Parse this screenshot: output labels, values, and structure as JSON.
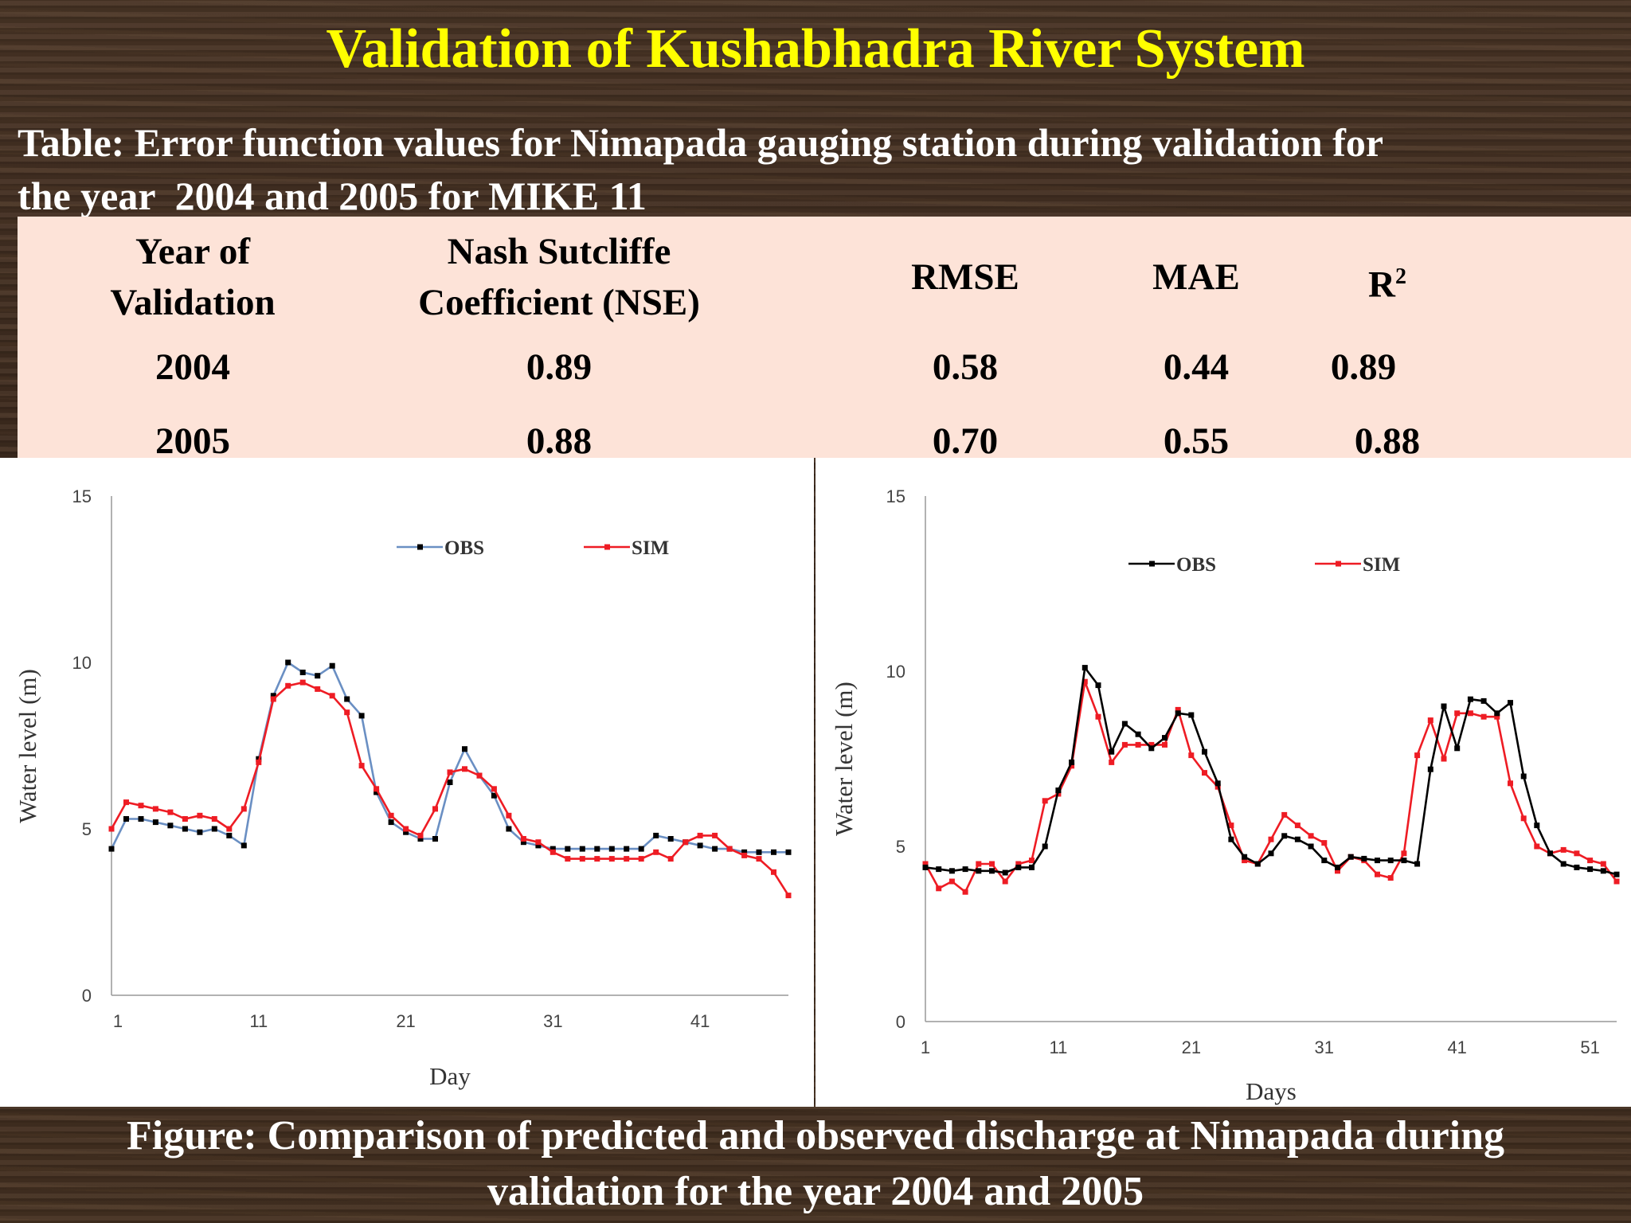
{
  "title": "Validation of Kushabhadra River System",
  "table": {
    "caption_line1": "Table: Error function values for Nimapada gauging station during validation for",
    "caption_line2": "the year  2004 and 2005 for MIKE 11",
    "headers": {
      "year_line1": "Year of",
      "year_line2": "Validation",
      "nse_line1": "Nash Sutcliffe",
      "nse_line2": "Coefficient (NSE)",
      "rmse": "RMSE",
      "mae": "MAE",
      "r2_base": "R",
      "r2_sup": "2"
    },
    "rows": [
      {
        "year": "2004",
        "nse": "0.89",
        "rmse": "0.58",
        "mae": "0.44",
        "r2": "0.89"
      },
      {
        "year": "2005",
        "nse": "0.88",
        "rmse": "0.70",
        "mae": "0.55",
        "r2": "0.88"
      }
    ]
  },
  "chart_data": [
    {
      "type": "line",
      "xlabel": "Day",
      "ylabel": "Water level (m)",
      "ylim": [
        0,
        15
      ],
      "xlim": [
        1,
        47
      ],
      "y_ticks": [
        "0",
        "5",
        "10",
        "15"
      ],
      "x_ticks": [
        1,
        11,
        21,
        31,
        41
      ],
      "grid": false,
      "legend_position": "top-right",
      "colors": {
        "OBS": "#6a8fc3",
        "SIM": "#ee1c24"
      },
      "series": [
        {
          "name": "OBS",
          "x": [
            1,
            2,
            3,
            4,
            5,
            6,
            7,
            8,
            9,
            10,
            11,
            12,
            13,
            14,
            15,
            16,
            17,
            18,
            19,
            20,
            21,
            22,
            23,
            24,
            25,
            26,
            27,
            28,
            29,
            30,
            31,
            32,
            33,
            34,
            35,
            36,
            37,
            38,
            39,
            40,
            41,
            42,
            43,
            44,
            45,
            46,
            47
          ],
          "values": [
            4.4,
            5.3,
            5.3,
            5.2,
            5.1,
            5.0,
            4.9,
            5.0,
            4.8,
            4.5,
            7.1,
            9.0,
            10.0,
            9.7,
            9.6,
            9.9,
            8.9,
            8.4,
            6.1,
            5.2,
            4.9,
            4.7,
            4.7,
            6.4,
            7.4,
            6.6,
            6.0,
            5.0,
            4.6,
            4.5,
            4.4,
            4.4,
            4.4,
            4.4,
            4.4,
            4.4,
            4.4,
            4.8,
            4.7,
            4.6,
            4.5,
            4.4,
            4.4,
            4.3,
            4.3,
            4.3,
            4.3
          ]
        },
        {
          "name": "SIM",
          "x": [
            1,
            2,
            3,
            4,
            5,
            6,
            7,
            8,
            9,
            10,
            11,
            12,
            13,
            14,
            15,
            16,
            17,
            18,
            19,
            20,
            21,
            22,
            23,
            24,
            25,
            26,
            27,
            28,
            29,
            30,
            31,
            32,
            33,
            34,
            35,
            36,
            37,
            38,
            39,
            40,
            41,
            42,
            43,
            44,
            45,
            46,
            47
          ],
          "values": [
            5.0,
            5.8,
            5.7,
            5.6,
            5.5,
            5.3,
            5.4,
            5.3,
            5.0,
            5.6,
            7.0,
            8.9,
            9.3,
            9.4,
            9.2,
            9.0,
            8.5,
            6.9,
            6.2,
            5.4,
            5.0,
            4.8,
            5.6,
            6.7,
            6.8,
            6.6,
            6.2,
            5.4,
            4.7,
            4.6,
            4.3,
            4.1,
            4.1,
            4.1,
            4.1,
            4.1,
            4.1,
            4.3,
            4.1,
            4.6,
            4.8,
            4.8,
            4.4,
            4.2,
            4.1,
            3.7,
            3.0
          ]
        }
      ]
    },
    {
      "type": "line",
      "xlabel": "Days",
      "ylabel": "Water level (m)",
      "ylim": [
        0,
        15
      ],
      "xlim": [
        1,
        53
      ],
      "y_ticks": [
        "0",
        "5",
        "10",
        "15"
      ],
      "x_ticks": [
        1,
        11,
        21,
        31,
        41,
        51
      ],
      "grid": false,
      "legend_position": "top-right",
      "colors": {
        "OBS": "#000000",
        "SIM": "#ee1c24"
      },
      "series": [
        {
          "name": "OBS",
          "x": [
            1,
            2,
            3,
            4,
            5,
            6,
            7,
            8,
            9,
            10,
            11,
            12,
            13,
            14,
            15,
            16,
            17,
            18,
            19,
            20,
            21,
            22,
            23,
            24,
            25,
            26,
            27,
            28,
            29,
            30,
            31,
            32,
            33,
            34,
            35,
            36,
            37,
            38,
            39,
            40,
            41,
            42,
            43,
            44,
            45,
            46,
            47,
            48,
            49,
            50,
            51,
            52,
            53
          ],
          "values": [
            4.4,
            4.35,
            4.3,
            4.35,
            4.3,
            4.3,
            4.25,
            4.4,
            4.4,
            5.0,
            6.6,
            7.4,
            10.1,
            9.6,
            7.7,
            8.5,
            8.2,
            7.8,
            8.1,
            8.8,
            8.75,
            7.7,
            6.8,
            5.2,
            4.7,
            4.5,
            4.8,
            5.3,
            5.2,
            5.0,
            4.6,
            4.4,
            4.7,
            4.65,
            4.6,
            4.6,
            4.6,
            4.5,
            7.2,
            9.0,
            7.8,
            9.2,
            9.15,
            8.8,
            9.1,
            7.0,
            5.6,
            4.8,
            4.5,
            4.4,
            4.35,
            4.3,
            4.2
          ]
        },
        {
          "name": "SIM",
          "x": [
            1,
            2,
            3,
            4,
            5,
            6,
            7,
            8,
            9,
            10,
            11,
            12,
            13,
            14,
            15,
            16,
            17,
            18,
            19,
            20,
            21,
            22,
            23,
            24,
            25,
            26,
            27,
            28,
            29,
            30,
            31,
            32,
            33,
            34,
            35,
            36,
            37,
            38,
            39,
            40,
            41,
            42,
            43,
            44,
            45,
            46,
            47,
            48,
            49,
            50,
            51,
            52,
            53
          ],
          "values": [
            4.5,
            3.8,
            4.0,
            3.7,
            4.5,
            4.5,
            4.0,
            4.5,
            4.6,
            6.3,
            6.5,
            7.3,
            9.7,
            8.7,
            7.4,
            7.9,
            7.9,
            7.9,
            7.9,
            8.9,
            7.6,
            7.1,
            6.7,
            5.6,
            4.6,
            4.5,
            5.2,
            5.9,
            5.6,
            5.3,
            5.1,
            4.3,
            4.7,
            4.6,
            4.2,
            4.1,
            4.8,
            7.6,
            8.6,
            7.5,
            8.8,
            8.8,
            8.7,
            8.7,
            6.8,
            5.8,
            5.0,
            4.8,
            4.9,
            4.8,
            4.6,
            4.5,
            4.0
          ]
        }
      ]
    }
  ],
  "figure_caption": {
    "line1": "Figure: Comparison of predicted and observed discharge at Nimapada during",
    "line2": "validation for the year 2004 and 2005"
  }
}
